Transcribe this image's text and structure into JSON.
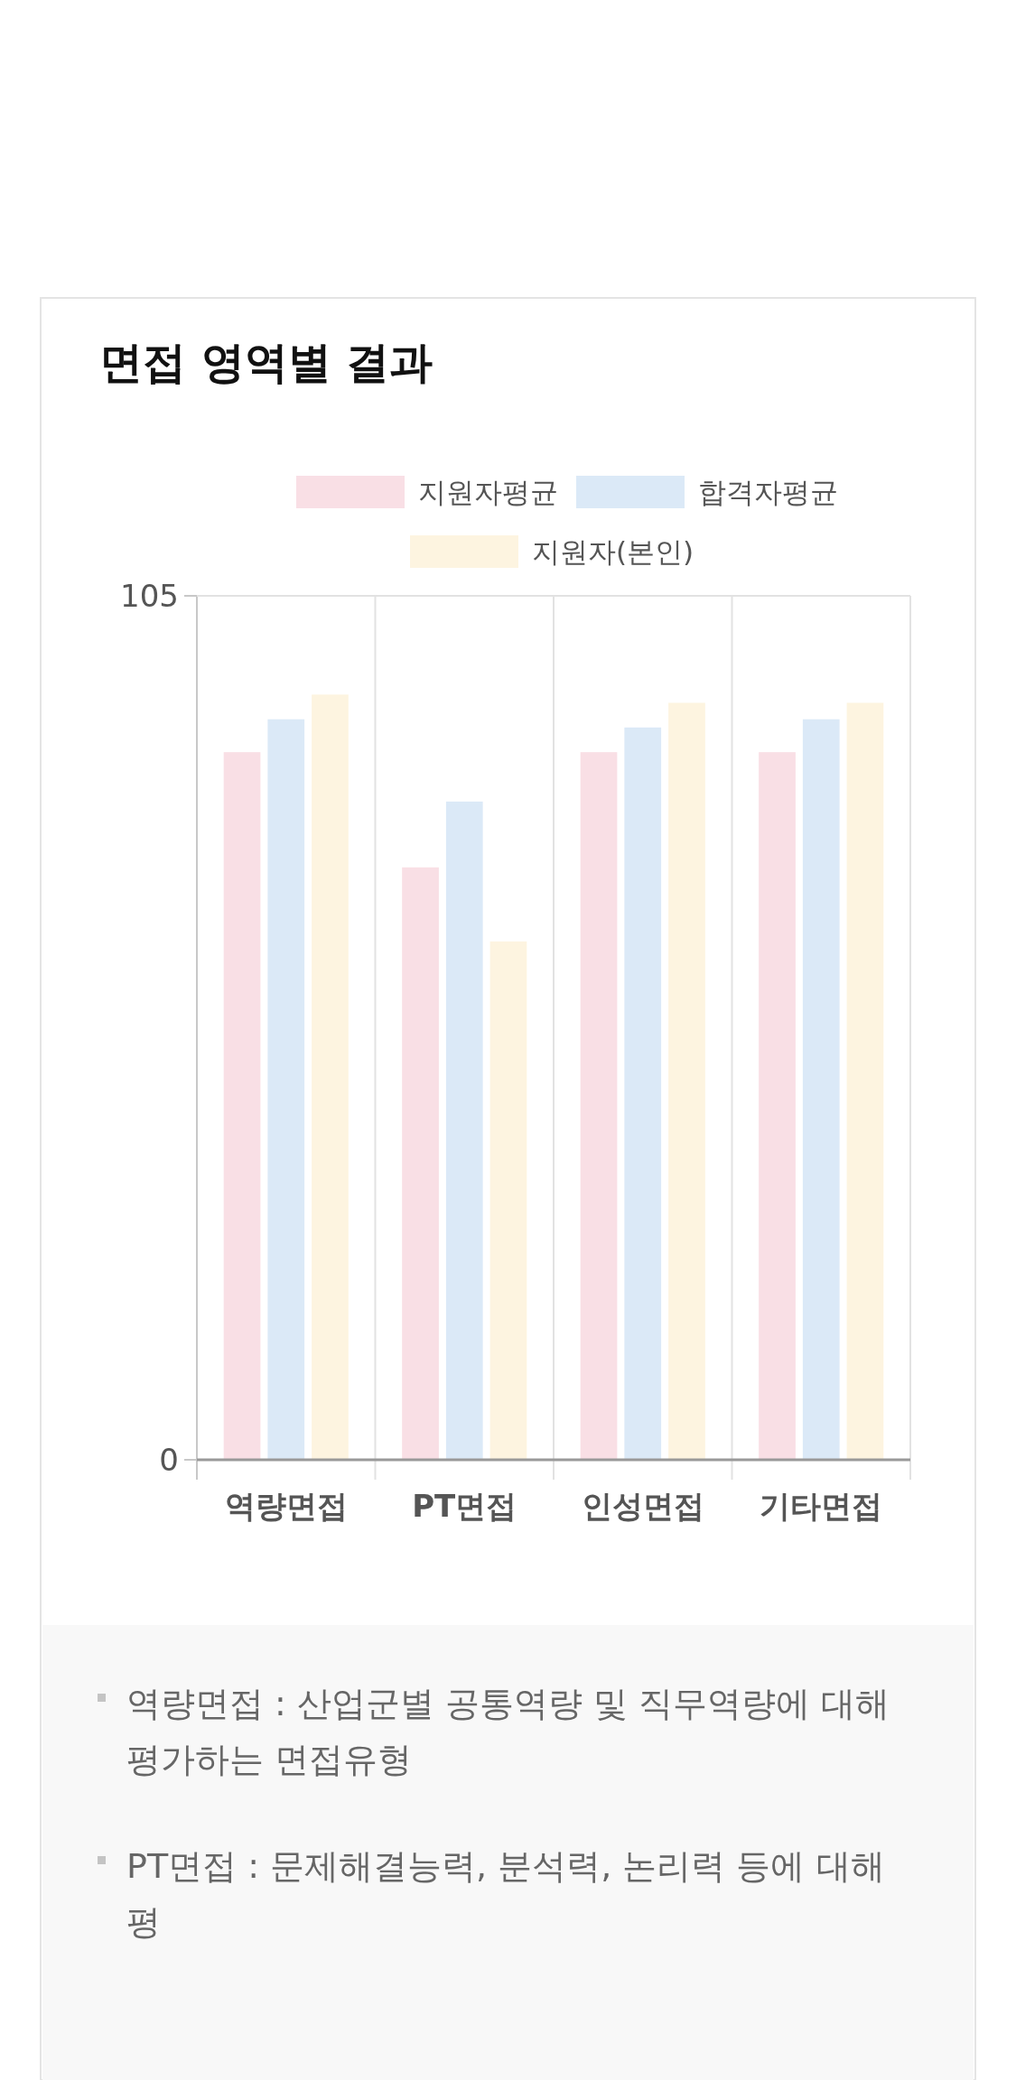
{
  "chart_data": {
    "type": "bar",
    "title": "면접 영역별 결과",
    "categories": [
      "역량면접",
      "PT면접",
      "인성면접",
      "기타면접"
    ],
    "series": [
      {
        "name": "지원자평균",
        "color": "#f9dfe5",
        "values": [
          86,
          72,
          86,
          86
        ]
      },
      {
        "name": "합격자평균",
        "color": "#dbe9f7",
        "values": [
          90,
          80,
          89,
          90
        ]
      },
      {
        "name": "지원자(본인)",
        "color": "#fdf4e0",
        "values": [
          93,
          63,
          92,
          92
        ]
      }
    ],
    "ylim": [
      0,
      105
    ],
    "yticks": [
      0,
      105
    ],
    "grid": "x",
    "legend": "top",
    "annotations": [
      "역량면접 : 산업군별 공통역량 및 직무역량에 대해 평가하는 면접유형",
      "PT면접 : 문제해결능력, 분석력, 논리력 등에 대해 평"
    ]
  }
}
